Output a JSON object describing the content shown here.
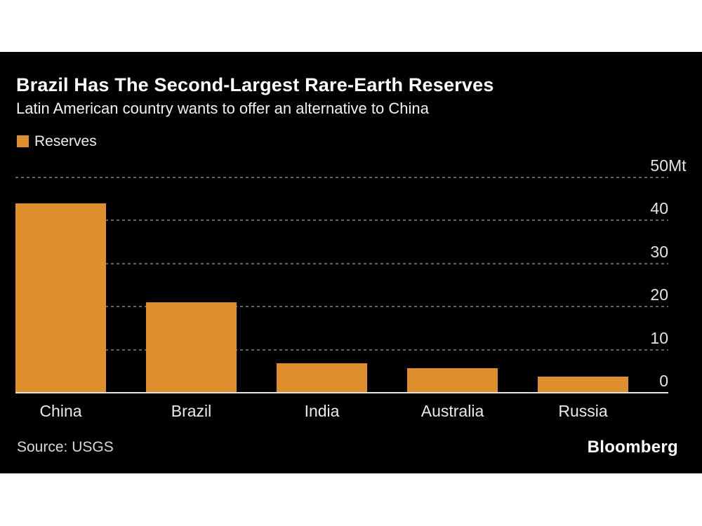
{
  "page": {
    "background": "#ffffff",
    "card_background": "#000000"
  },
  "header": {
    "title": "Brazil Has The Second-Largest Rare-Earth Reserves",
    "subtitle": "Latin American country wants to offer an alternative to China"
  },
  "legend": {
    "label": "Reserves",
    "swatch_color": "#df8e2d"
  },
  "footer": {
    "source": "Source: USGS",
    "brand": "Bloomberg"
  },
  "chart_data": {
    "type": "bar",
    "title": "Brazil Has The Second-Largest Rare-Earth Reserves",
    "subtitle": "Latin American country wants to offer an alternative to China",
    "categories": [
      "China",
      "Brazil",
      "India",
      "Australia",
      "Russia"
    ],
    "series": [
      {
        "name": "Reserves",
        "values": [
          44,
          21,
          6.9,
          5.7,
          3.8
        ]
      }
    ],
    "unit": "Mt",
    "ylim": [
      0,
      50
    ],
    "yticks": [
      0,
      10,
      20,
      30,
      40,
      50
    ],
    "ytick_labels": [
      "0",
      "10",
      "20",
      "30",
      "40",
      "50Mt"
    ],
    "ytick_side": "right",
    "grid": "horizontal-dotted",
    "legend_position": "top-left",
    "bar_color": "#df8e2d",
    "gridline_color": "#626262",
    "baseline_color": "#e3e3e3",
    "source": "Source: USGS",
    "brand": "Bloomberg"
  }
}
